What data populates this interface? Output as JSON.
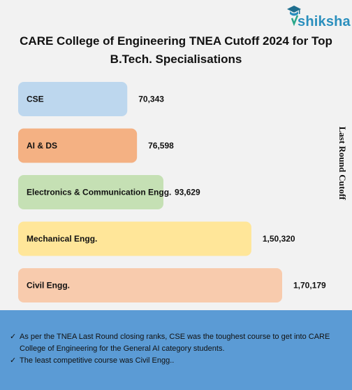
{
  "logo": {
    "text": "shiksha",
    "icon": "graduation-cap-icon"
  },
  "title": {
    "line1": "CARE College of Engineering TNEA Cutoff 2024 for Top",
    "line2": "B.Tech. Specialisations"
  },
  "chart_data": {
    "type": "bar",
    "orientation": "horizontal",
    "categories": [
      "CSE",
      "AI & DS",
      "Electronics & Communication Engg.",
      "Mechanical Engg.",
      "Civil Engg."
    ],
    "values": [
      70343,
      76598,
      93629,
      150320,
      170179
    ],
    "value_labels": [
      "70,343",
      "76,598",
      "93,629",
      "1,50,320",
      "1,70,179"
    ],
    "colors": [
      "#bdd7ee",
      "#f4b183",
      "#c5e0b4",
      "#ffe699",
      "#f8cbad"
    ],
    "ylabel": "Last Round Cutoff",
    "grid": false,
    "legend": "none"
  },
  "notes": {
    "items": [
      "As per the TNEA Last Round closing ranks, CSE was the toughest course to get into CARE College of Engineering for the General AI category students.",
      "The least competitive course was Civil Engg.."
    ],
    "check_symbol": "✓"
  }
}
